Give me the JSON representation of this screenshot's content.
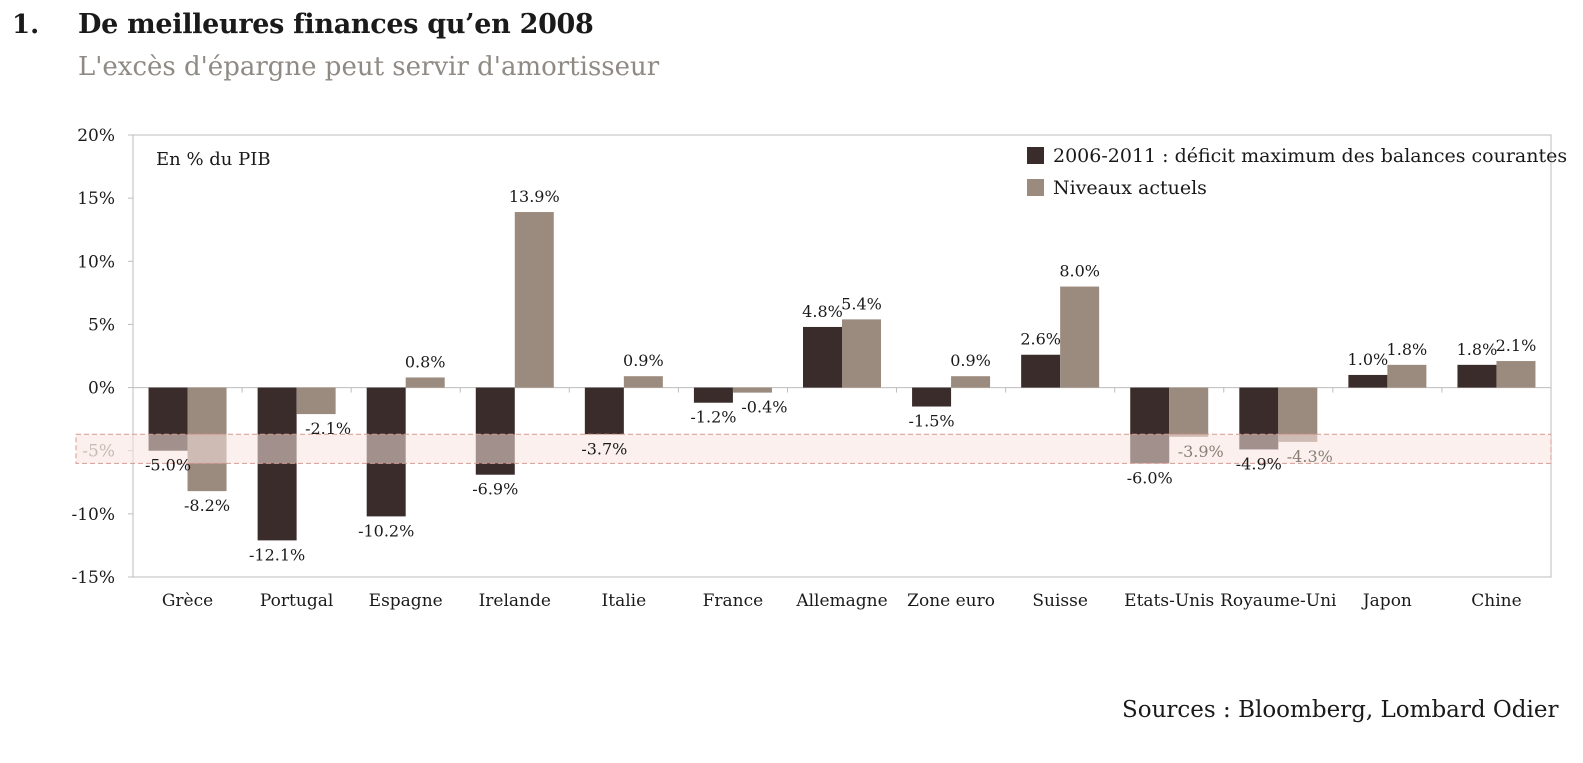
{
  "header": {
    "number": "1.",
    "title": "De meilleures finances qu’en 2008",
    "subtitle": "L'excès d'épargne peut servir d'amortisseur"
  },
  "footer": {
    "source": "Sources : Bloomberg, Lombard Odier"
  },
  "colors": {
    "series_dark": "#3a2c2a",
    "series_light": "#9b8a7e",
    "band_fill": "#f8e4df",
    "band_stroke": "#d49a92",
    "axis": "#bdbdbd",
    "text": "#1a1a1a",
    "muted": "#8f8a84"
  },
  "chart_data": {
    "type": "bar",
    "unit_note": "En % du PIB",
    "categories": [
      "Grèce",
      "Portugal",
      "Espagne",
      "Irelande",
      "Italie",
      "France",
      "Allemagne",
      "Zone euro",
      "Suisse",
      "Etats-Unis",
      "Royaume-Uni",
      "Japon",
      "Chine"
    ],
    "series": [
      {
        "name": "2006-2011 : déficit maximum des balances courantes",
        "values": [
          -5.0,
          -12.1,
          -10.2,
          -6.9,
          -3.7,
          -1.2,
          4.8,
          -1.5,
          2.6,
          -6.0,
          -4.9,
          1.0,
          1.8
        ],
        "labels": [
          "-5.0%",
          "-12.1%",
          "-10.2%",
          "-6.9%",
          "-3.7%",
          "-1.2%",
          "4.8%",
          "-1.5%",
          "2.6%",
          "-6.0%",
          "-4.9%",
          "1.0%",
          "1.8%"
        ]
      },
      {
        "name": "Niveaux actuels",
        "values": [
          -8.2,
          -2.1,
          0.8,
          13.9,
          0.9,
          -0.4,
          5.4,
          0.9,
          8.0,
          -3.9,
          -4.3,
          1.8,
          2.1
        ],
        "labels": [
          "-8.2%",
          "-2.1%",
          "0.8%",
          "13.9%",
          "0.9%",
          "-0.4%",
          "5.4%",
          "0.9%",
          "8.0%",
          "-3.9%",
          "-4.3%",
          "1.8%",
          "2.1%"
        ]
      }
    ],
    "y_ticks": [
      "20%",
      "15%",
      "10%",
      "5%",
      "0%",
      "-5%",
      "-10%",
      "-15%"
    ],
    "y_tick_values": [
      20,
      15,
      10,
      5,
      0,
      -5,
      -10,
      -15
    ],
    "ylim": [
      -15,
      20
    ],
    "highlight_band": [
      -6,
      -3.7
    ],
    "legend_position": "top-right",
    "grid": false
  }
}
